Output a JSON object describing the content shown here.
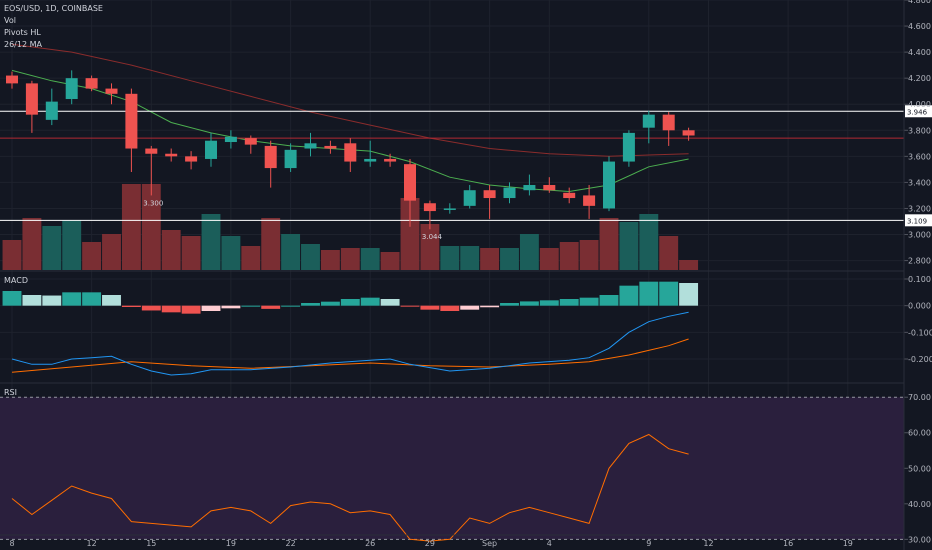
{
  "header": {
    "symbol_line": "EOS/USD, 1D, COINBASE",
    "volume_label": "Vol",
    "pivots_label": "Pivots HL",
    "ma_label": "26/12 MA",
    "macd_label": "MACD",
    "rsi_label": "RSI"
  },
  "colors": {
    "background": "#131722",
    "grid": "#1e222d",
    "up": "#26a69a",
    "down": "#ef5350",
    "vol_up": "#1b5e5a",
    "vol_down": "#7a2e33",
    "ma_fast": "#4caf50",
    "ma_slow": "#8b2c2c",
    "macd": "#2196f3",
    "signal": "#ff6d00",
    "rsi": "#ff6d00",
    "rsi_band": "#2a1f3d",
    "price_line": "#d1d4dc",
    "horizontal_line": "#ffffff",
    "red_line": "#b22833"
  },
  "chart_data": [
    {
      "type": "candlestick",
      "name": "price",
      "ylim": [
        2.72,
        4.8
      ],
      "yticks": [
        2.8,
        3.0,
        3.2,
        3.4,
        3.6,
        3.8,
        4.0,
        4.2,
        4.4,
        4.6,
        4.8
      ],
      "ytick_labels": [
        "2.800",
        "3.000",
        "3.200",
        "3.400",
        "3.600",
        "3.800",
        "4.000",
        "4.200",
        "4.400",
        "4.600",
        "4.800"
      ],
      "x_labels": [
        {
          "day": 0,
          "label": "8"
        },
        {
          "day": 4,
          "label": "12"
        },
        {
          "day": 7,
          "label": "15"
        },
        {
          "day": 11,
          "label": "19"
        },
        {
          "day": 14,
          "label": "22"
        },
        {
          "day": 18,
          "label": "26"
        },
        {
          "day": 21,
          "label": "29"
        },
        {
          "day": 24,
          "label": "Sep"
        },
        {
          "day": 27,
          "label": "4"
        },
        {
          "day": 32,
          "label": "9"
        },
        {
          "day": 35,
          "label": "12"
        },
        {
          "day": 39,
          "label": "16"
        },
        {
          "day": 42,
          "label": "19"
        }
      ],
      "candles": [
        {
          "day": 0,
          "o": 4.22,
          "h": 4.25,
          "l": 4.12,
          "c": 4.16
        },
        {
          "day": 1,
          "o": 4.16,
          "h": 4.18,
          "l": 3.78,
          "c": 3.92
        },
        {
          "day": 2,
          "o": 3.88,
          "h": 4.12,
          "l": 3.84,
          "c": 4.02
        },
        {
          "day": 3,
          "o": 4.04,
          "h": 4.26,
          "l": 4.0,
          "c": 4.2
        },
        {
          "day": 4,
          "o": 4.2,
          "h": 4.22,
          "l": 4.1,
          "c": 4.12
        },
        {
          "day": 5,
          "o": 4.12,
          "h": 4.16,
          "l": 4.0,
          "c": 4.08
        },
        {
          "day": 6,
          "o": 4.08,
          "h": 4.12,
          "l": 3.48,
          "c": 3.66
        },
        {
          "day": 7,
          "o": 3.66,
          "h": 3.68,
          "l": 3.3,
          "c": 3.62
        },
        {
          "day": 8,
          "o": 3.62,
          "h": 3.66,
          "l": 3.56,
          "c": 3.6
        },
        {
          "day": 9,
          "o": 3.6,
          "h": 3.64,
          "l": 3.5,
          "c": 3.56
        },
        {
          "day": 10,
          "o": 3.58,
          "h": 3.78,
          "l": 3.52,
          "c": 3.72
        },
        {
          "day": 11,
          "o": 3.71,
          "h": 3.8,
          "l": 3.66,
          "c": 3.75
        },
        {
          "day": 12,
          "o": 3.74,
          "h": 3.76,
          "l": 3.62,
          "c": 3.69
        },
        {
          "day": 13,
          "o": 3.68,
          "h": 3.72,
          "l": 3.36,
          "c": 3.51
        },
        {
          "day": 14,
          "o": 3.51,
          "h": 3.7,
          "l": 3.48,
          "c": 3.65
        },
        {
          "day": 15,
          "o": 3.66,
          "h": 3.78,
          "l": 3.6,
          "c": 3.7
        },
        {
          "day": 16,
          "o": 3.68,
          "h": 3.72,
          "l": 3.62,
          "c": 3.66
        },
        {
          "day": 17,
          "o": 3.7,
          "h": 3.74,
          "l": 3.48,
          "c": 3.56
        },
        {
          "day": 18,
          "o": 3.56,
          "h": 3.72,
          "l": 3.52,
          "c": 3.58
        },
        {
          "day": 19,
          "o": 3.58,
          "h": 3.62,
          "l": 3.52,
          "c": 3.56
        },
        {
          "day": 20,
          "o": 3.54,
          "h": 3.58,
          "l": 3.06,
          "c": 3.26
        },
        {
          "day": 21,
          "o": 3.24,
          "h": 3.26,
          "l": 3.04,
          "c": 3.18
        },
        {
          "day": 22,
          "o": 3.19,
          "h": 3.24,
          "l": 3.16,
          "c": 3.2
        },
        {
          "day": 23,
          "o": 3.22,
          "h": 3.38,
          "l": 3.2,
          "c": 3.34
        },
        {
          "day": 24,
          "o": 3.34,
          "h": 3.38,
          "l": 3.12,
          "c": 3.28
        },
        {
          "day": 25,
          "o": 3.28,
          "h": 3.4,
          "l": 3.24,
          "c": 3.36
        },
        {
          "day": 26,
          "o": 3.34,
          "h": 3.46,
          "l": 3.3,
          "c": 3.38
        },
        {
          "day": 27,
          "o": 3.38,
          "h": 3.44,
          "l": 3.32,
          "c": 3.34
        },
        {
          "day": 28,
          "o": 3.32,
          "h": 3.36,
          "l": 3.24,
          "c": 3.28
        },
        {
          "day": 29,
          "o": 3.3,
          "h": 3.38,
          "l": 3.12,
          "c": 3.22
        },
        {
          "day": 30,
          "o": 3.2,
          "h": 3.6,
          "l": 3.18,
          "c": 3.56
        },
        {
          "day": 31,
          "o": 3.56,
          "h": 3.8,
          "l": 3.52,
          "c": 3.78
        },
        {
          "day": 32,
          "o": 3.82,
          "h": 3.95,
          "l": 3.7,
          "c": 3.92
        },
        {
          "day": 33,
          "o": 3.92,
          "h": 3.94,
          "l": 3.68,
          "c": 3.8
        },
        {
          "day": 34,
          "o": 3.8,
          "h": 3.82,
          "l": 3.72,
          "c": 3.76
        }
      ],
      "ma_fast": [
        [
          0,
          4.26
        ],
        [
          2,
          4.18
        ],
        [
          4,
          4.12
        ],
        [
          6,
          4.02
        ],
        [
          8,
          3.86
        ],
        [
          10,
          3.78
        ],
        [
          12,
          3.72
        ],
        [
          14,
          3.68
        ],
        [
          16,
          3.66
        ],
        [
          18,
          3.64
        ],
        [
          20,
          3.56
        ],
        [
          22,
          3.44
        ],
        [
          24,
          3.38
        ],
        [
          26,
          3.35
        ],
        [
          28,
          3.33
        ],
        [
          30,
          3.38
        ],
        [
          32,
          3.52
        ],
        [
          34,
          3.58
        ]
      ],
      "ma_slow": [
        [
          0,
          4.46
        ],
        [
          3,
          4.4
        ],
        [
          6,
          4.3
        ],
        [
          9,
          4.18
        ],
        [
          12,
          4.06
        ],
        [
          15,
          3.94
        ],
        [
          18,
          3.84
        ],
        [
          21,
          3.74
        ],
        [
          24,
          3.66
        ],
        [
          27,
          3.62
        ],
        [
          30,
          3.6
        ],
        [
          32,
          3.61
        ],
        [
          34,
          3.62
        ]
      ],
      "pivot_labels": [
        {
          "day": 7,
          "price": 3.3,
          "text": "3.300"
        },
        {
          "day": 21,
          "price": 3.044,
          "text": "3.044"
        }
      ],
      "hlines": [
        {
          "price": 3.946,
          "label": "3.946",
          "color": "#ffffff"
        },
        {
          "price": 3.109,
          "label": "3.109",
          "color": "#ffffff"
        },
        {
          "price": 3.74,
          "label": "",
          "color": "#b22833"
        }
      ]
    },
    {
      "type": "bar",
      "name": "volume",
      "values": [
        30,
        52,
        44,
        50,
        28,
        36,
        86,
        86,
        40,
        34,
        56,
        34,
        24,
        52,
        36,
        26,
        20,
        22,
        22,
        18,
        72,
        46,
        24,
        24,
        22,
        22,
        36,
        22,
        28,
        30,
        52,
        48,
        56,
        34,
        10
      ],
      "direction": [
        "down",
        "down",
        "up",
        "up",
        "down",
        "down",
        "down",
        "down",
        "down",
        "down",
        "up",
        "up",
        "down",
        "down",
        "up",
        "up",
        "down",
        "down",
        "up",
        "down",
        "down",
        "down",
        "up",
        "up",
        "down",
        "up",
        "up",
        "down",
        "down",
        "down",
        "down",
        "up",
        "up",
        "down",
        "down"
      ]
    },
    {
      "type": "bar",
      "name": "macd_histogram",
      "ylim": [
        -0.29,
        0.13
      ],
      "yticks": [
        0.1,
        0.0,
        -0.1,
        -0.2
      ],
      "ytick_labels": [
        "0.100",
        "0.000",
        "-0.100",
        "-0.200"
      ],
      "values": [
        0.055,
        0.04,
        0.038,
        0.05,
        0.05,
        0.04,
        -0.005,
        -0.018,
        -0.025,
        -0.03,
        -0.02,
        -0.01,
        0.0,
        -0.012,
        0.0,
        0.01,
        0.015,
        0.025,
        0.03,
        0.025,
        -0.002,
        -0.015,
        -0.02,
        -0.015,
        -0.006,
        0.01,
        0.016,
        0.02,
        0.025,
        0.03,
        0.04,
        0.075,
        0.09,
        0.09,
        0.085
      ],
      "macd_line": [
        [
          0,
          -0.2
        ],
        [
          1,
          -0.22
        ],
        [
          2,
          -0.22
        ],
        [
          3,
          -0.2
        ],
        [
          4,
          -0.195
        ],
        [
          5,
          -0.19
        ],
        [
          6,
          -0.22
        ],
        [
          7,
          -0.245
        ],
        [
          8,
          -0.26
        ],
        [
          9,
          -0.255
        ],
        [
          10,
          -0.24
        ],
        [
          12,
          -0.24
        ],
        [
          14,
          -0.23
        ],
        [
          16,
          -0.215
        ],
        [
          18,
          -0.205
        ],
        [
          19,
          -0.2
        ],
        [
          20,
          -0.22
        ],
        [
          22,
          -0.245
        ],
        [
          24,
          -0.235
        ],
        [
          26,
          -0.215
        ],
        [
          28,
          -0.205
        ],
        [
          29,
          -0.195
        ],
        [
          30,
          -0.16
        ],
        [
          31,
          -0.1
        ],
        [
          32,
          -0.06
        ],
        [
          33,
          -0.04
        ],
        [
          34,
          -0.025
        ]
      ],
      "signal_line": [
        [
          0,
          -0.25
        ],
        [
          3,
          -0.23
        ],
        [
          6,
          -0.21
        ],
        [
          9,
          -0.225
        ],
        [
          12,
          -0.235
        ],
        [
          15,
          -0.225
        ],
        [
          18,
          -0.215
        ],
        [
          21,
          -0.225
        ],
        [
          24,
          -0.23
        ],
        [
          27,
          -0.22
        ],
        [
          29,
          -0.21
        ],
        [
          31,
          -0.185
        ],
        [
          33,
          -0.15
        ],
        [
          34,
          -0.125
        ]
      ]
    },
    {
      "type": "line",
      "name": "rsi",
      "ylim": [
        27,
        74
      ],
      "yticks": [
        70,
        60,
        50,
        40,
        30
      ],
      "ytick_labels": [
        "70.00",
        "60.00",
        "50.00",
        "40.00",
        "30.00"
      ],
      "band": [
        30,
        70
      ],
      "values": [
        41.5,
        37,
        41,
        45,
        43,
        41.5,
        35,
        34.5,
        34,
        33.5,
        38,
        39,
        38,
        34.5,
        39.5,
        40.5,
        40,
        37.5,
        38,
        37,
        30,
        29.5,
        30,
        36,
        34.5,
        37.5,
        39,
        37.5,
        36,
        34.5,
        50,
        57,
        59.5,
        55.5,
        54
      ]
    }
  ]
}
